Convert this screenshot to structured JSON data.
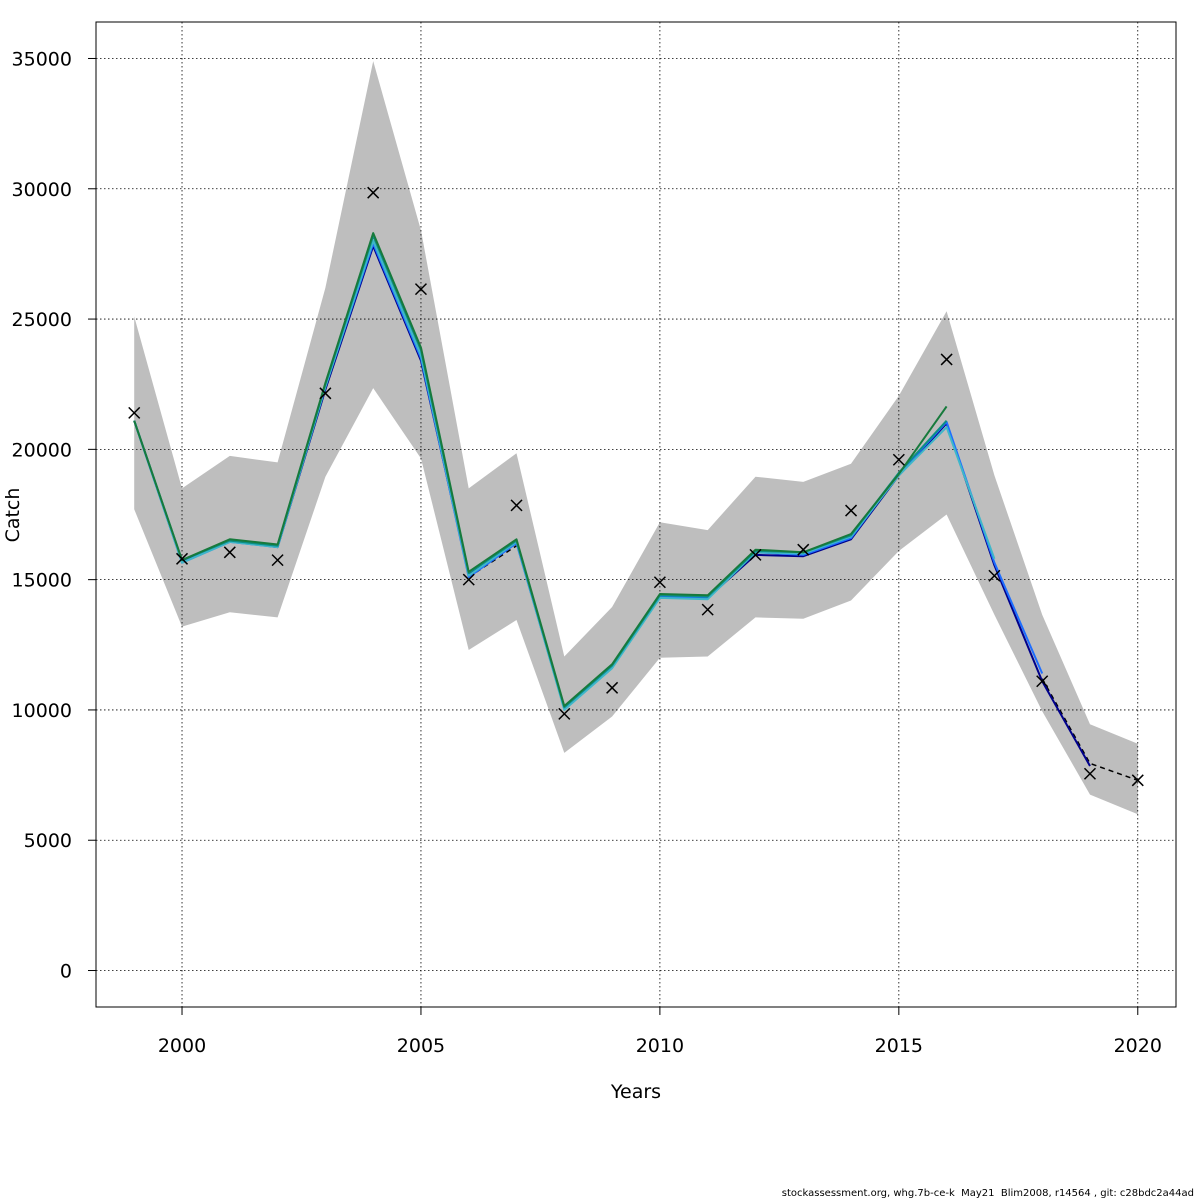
{
  "chart_data": {
    "type": "line",
    "title": "",
    "xlabel": "Years",
    "ylabel": "Catch",
    "xlim": [
      1998.2,
      2020.8
    ],
    "ylim": [
      -1400,
      36400
    ],
    "xticks": [
      2000,
      2005,
      2010,
      2015,
      2020
    ],
    "yticks": [
      0,
      5000,
      10000,
      15000,
      20000,
      25000,
      30000,
      35000
    ],
    "x_tick_labels": [
      "2000",
      "2005",
      "2010",
      "2015",
      "2020"
    ],
    "y_tick_labels": [
      "0",
      "5000",
      "10000",
      "15000",
      "20000",
      "25000",
      "30000",
      "35000"
    ],
    "grid": true,
    "x": [
      1999,
      2000,
      2001,
      2002,
      2003,
      2004,
      2005,
      2006,
      2007,
      2008,
      2009,
      2010,
      2011,
      2012,
      2013,
      2014,
      2015,
      2016,
      2017,
      2018,
      2019,
      2020
    ],
    "band": {
      "name": "confidence-interval",
      "color": "#bebebe",
      "lower": [
        17700,
        13200,
        13750,
        13550,
        18950,
        22350,
        19650,
        12300,
        13450,
        8350,
        9750,
        12000,
        12050,
        13550,
        13500,
        14200,
        16100,
        17500,
        13650,
        9950,
        6750,
        6000
      ],
      "upper": [
        25100,
        18500,
        19750,
        19500,
        26200,
        34900,
        28400,
        18500,
        19850,
        12050,
        13950,
        17200,
        16900,
        18950,
        18750,
        19450,
        22050,
        25300,
        19000,
        13650,
        9450,
        8700
      ]
    },
    "series": [
      {
        "name": "base-run-dashed",
        "color": "#000000",
        "dashed": true,
        "values": [
          null,
          null,
          null,
          null,
          null,
          null,
          null,
          15100,
          16300,
          null,
          null,
          null,
          null,
          null,
          null,
          null,
          null,
          null,
          null,
          11200,
          7950,
          7300
        ]
      },
      {
        "name": "retro-dark-blue",
        "color": "#00008b",
        "dashed": false,
        "values": [
          21100,
          15700,
          16500,
          16250,
          22300,
          27800,
          23400,
          15200,
          16450,
          10100,
          11650,
          14350,
          14300,
          15950,
          15900,
          16550,
          19000,
          21000,
          15550,
          11100,
          7850,
          null
        ]
      },
      {
        "name": "retro-blue",
        "color": "#1e6eff",
        "dashed": false,
        "values": [
          21100,
          15650,
          16450,
          16250,
          22400,
          27900,
          23500,
          15100,
          16400,
          10050,
          11650,
          14350,
          14300,
          16050,
          15950,
          16600,
          19050,
          21050,
          15650,
          11400,
          null,
          null
        ]
      },
      {
        "name": "retro-cyan",
        "color": "#3fb7c9",
        "dashed": false,
        "values": [
          21100,
          15650,
          16450,
          16250,
          22400,
          28000,
          23600,
          15150,
          16450,
          10000,
          11600,
          14300,
          14250,
          16050,
          16000,
          16650,
          19000,
          20850,
          15800,
          null,
          null,
          null
        ]
      },
      {
        "name": "retro-teal",
        "color": "#0b8f86",
        "dashed": false,
        "values": [
          21100,
          15750,
          16500,
          16300,
          22500,
          28200,
          23800,
          15250,
          16500,
          10100,
          11700,
          14400,
          14350,
          16100,
          16050,
          16700,
          19100,
          21100,
          null,
          null,
          null,
          null
        ]
      },
      {
        "name": "retro-green",
        "color": "#177a3c",
        "dashed": false,
        "values": [
          21100,
          15750,
          16550,
          16350,
          22550,
          28300,
          23900,
          15300,
          16550,
          10150,
          11750,
          14450,
          14400,
          16150,
          16050,
          16750,
          19050,
          21650,
          null,
          null,
          null,
          null
        ]
      }
    ],
    "observations": {
      "name": "observed-catch",
      "marker": "cross",
      "values": [
        21400,
        15800,
        16050,
        15750,
        22150,
        29850,
        26150,
        15000,
        17850,
        9850,
        10850,
        14900,
        13850,
        15950,
        16150,
        17650,
        19600,
        23450,
        15150,
        11100,
        7550,
        7300
      ]
    }
  },
  "footer": "stockassessment.org, whg.7b-ce-k  May21  Blim2008, r14564 , git: c28bdc2a44ad"
}
